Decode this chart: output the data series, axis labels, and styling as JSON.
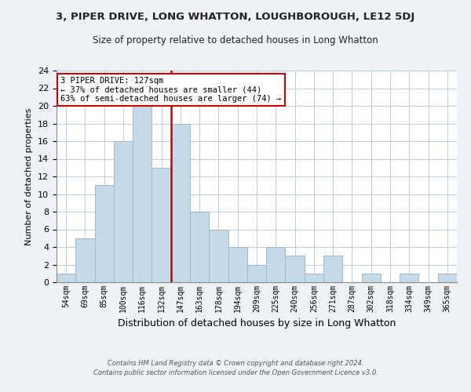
{
  "title1": "3, PIPER DRIVE, LONG WHATTON, LOUGHBOROUGH, LE12 5DJ",
  "title2": "Size of property relative to detached houses in Long Whatton",
  "xlabel": "Distribution of detached houses by size in Long Whatton",
  "ylabel": "Number of detached properties",
  "categories": [
    "54sqm",
    "69sqm",
    "85sqm",
    "100sqm",
    "116sqm",
    "132sqm",
    "147sqm",
    "163sqm",
    "178sqm",
    "194sqm",
    "209sqm",
    "225sqm",
    "240sqm",
    "256sqm",
    "271sqm",
    "287sqm",
    "302sqm",
    "318sqm",
    "334sqm",
    "349sqm",
    "365sqm"
  ],
  "values": [
    1,
    5,
    11,
    16,
    20,
    13,
    18,
    8,
    6,
    4,
    2,
    4,
    3,
    1,
    3,
    0,
    1,
    0,
    1,
    0,
    1
  ],
  "bar_color": "#c6d9e8",
  "bar_edge_color": "#9ab8cc",
  "vline_x": 5.5,
  "vline_color": "#cc0000",
  "annotation_title": "3 PIPER DRIVE: 127sqm",
  "annotation_line2": "← 37% of detached houses are smaller (44)",
  "annotation_line3": "63% of semi-detached houses are larger (74) →",
  "annotation_box_edge_color": "#cc0000",
  "ylim": [
    0,
    24
  ],
  "yticks": [
    0,
    2,
    4,
    6,
    8,
    10,
    12,
    14,
    16,
    18,
    20,
    22,
    24
  ],
  "footnote1": "Contains HM Land Registry data © Crown copyright and database right 2024.",
  "footnote2": "Contains public sector information licensed under the Open Government Licence v3.0.",
  "bg_color": "#eef2f6",
  "plot_bg_color": "#ffffff",
  "grid_color": "#c0ccd8"
}
